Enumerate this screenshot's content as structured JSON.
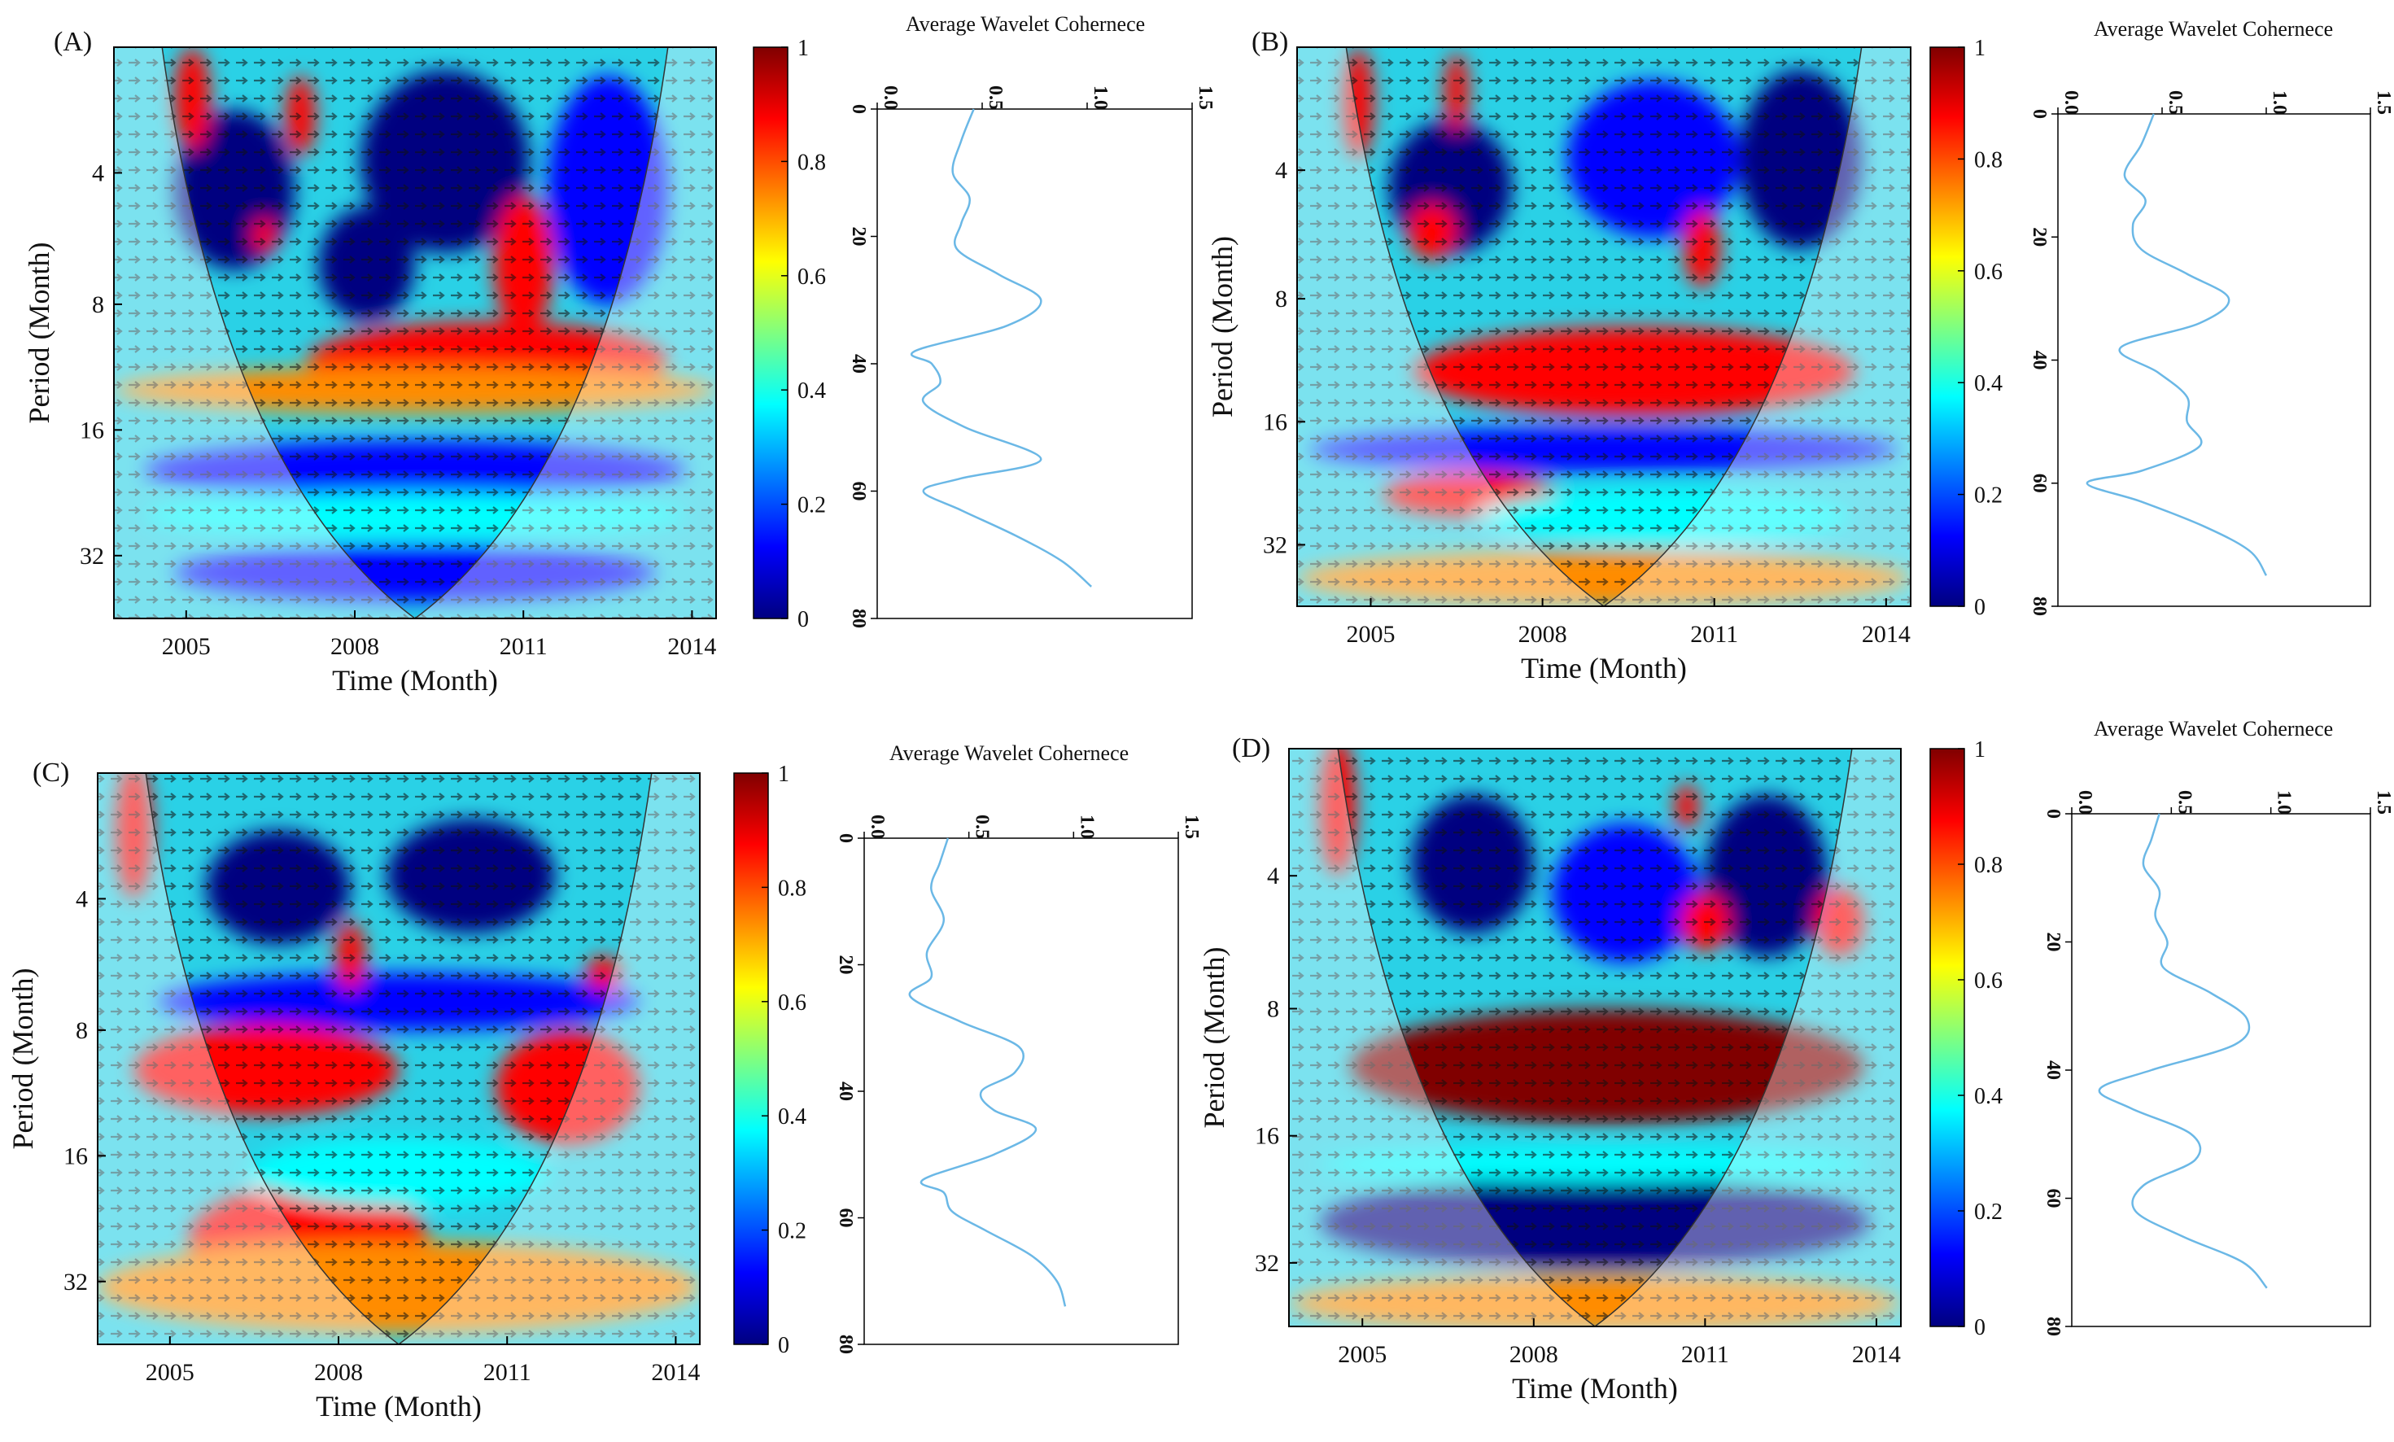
{
  "colors": {
    "dark_red": "#800000",
    "red": "#ff0000",
    "orange": "#ff8c00",
    "yellow": "#ffff00",
    "cyan": "#00ffff",
    "blue": "#0000ff",
    "dark_blue": "#000080",
    "coherence_line": "#6bb8e6"
  },
  "chart_data": [
    {
      "panel_label": "(A)",
      "type": "heatmap",
      "xlabel": "Time (Month)",
      "ylabel": "Period (Month)",
      "x_ticks": [
        "2005",
        "2008",
        "2011",
        "2014"
      ],
      "y_ticks": [
        "4",
        "8",
        "16",
        "32"
      ],
      "colorbar": {
        "ticks": [
          "0",
          "0.2",
          "0.4",
          "0.6",
          "0.8",
          "1"
        ],
        "range": [
          0,
          1
        ]
      },
      "profile": {
        "title": "Average Wavelet Cohernece",
        "x_ticks": [
          "0.0",
          "0.5",
          "1.0",
          "1.5"
        ],
        "y_ticks": [
          "0",
          "20",
          "40",
          "60",
          "80"
        ],
        "xlim": [
          0,
          1.5
        ],
        "ylim": [
          0,
          80
        ],
        "period": [
          0,
          5,
          10,
          14,
          18,
          22,
          26,
          30,
          34,
          38,
          40,
          43,
          46,
          50,
          55,
          58,
          60,
          63,
          67,
          71,
          75
        ],
        "value": [
          0.46,
          0.4,
          0.36,
          0.44,
          0.4,
          0.38,
          0.58,
          0.78,
          0.62,
          0.18,
          0.26,
          0.3,
          0.22,
          0.42,
          0.78,
          0.4,
          0.22,
          0.4,
          0.66,
          0.88,
          1.02
        ]
      }
    },
    {
      "panel_label": "(B)",
      "type": "heatmap",
      "xlabel": "Time (Month)",
      "ylabel": "Period (Month)",
      "x_ticks": [
        "2005",
        "2008",
        "2011",
        "2014"
      ],
      "y_ticks": [
        "4",
        "8",
        "16",
        "32"
      ],
      "colorbar": {
        "ticks": [
          "0",
          "0.2",
          "0.4",
          "0.6",
          "0.8",
          "1"
        ],
        "range": [
          0,
          1
        ]
      },
      "profile": {
        "title": "Average Wavelet Cohernece",
        "x_ticks": [
          "0.0",
          "0.5",
          "1.0",
          "1.5"
        ],
        "y_ticks": [
          "0",
          "20",
          "40",
          "60",
          "80"
        ],
        "xlim": [
          0,
          1.5
        ],
        "ylim": [
          0,
          80
        ],
        "period": [
          0,
          5,
          10,
          14,
          18,
          22,
          26,
          30,
          34,
          38,
          42,
          46,
          50,
          54,
          58,
          60,
          63,
          67,
          71,
          75
        ],
        "value": [
          0.46,
          0.4,
          0.32,
          0.42,
          0.36,
          0.4,
          0.62,
          0.82,
          0.68,
          0.3,
          0.48,
          0.62,
          0.62,
          0.68,
          0.4,
          0.14,
          0.4,
          0.7,
          0.92,
          1.0
        ]
      }
    },
    {
      "panel_label": "(C)",
      "type": "heatmap",
      "xlabel": "Time (Month)",
      "ylabel": "Period (Month)",
      "x_ticks": [
        "2005",
        "2008",
        "2011",
        "2014"
      ],
      "y_ticks": [
        "4",
        "8",
        "16",
        "32"
      ],
      "colorbar": {
        "ticks": [
          "0",
          "0.2",
          "0.4",
          "0.6",
          "0.8",
          "1"
        ],
        "range": [
          0,
          1
        ]
      },
      "profile": {
        "title": "Average Wavelet Cohernece",
        "x_ticks": [
          "0.0",
          "0.5",
          "1.0",
          "1.5"
        ],
        "y_ticks": [
          "0",
          "20",
          "40",
          "60",
          "80"
        ],
        "xlim": [
          0,
          1.5
        ],
        "ylim": [
          0,
          80
        ],
        "period": [
          0,
          4,
          8,
          13,
          18,
          22,
          25,
          29,
          33,
          37,
          40,
          43,
          46,
          50,
          54,
          56,
          59,
          62,
          66,
          70,
          74
        ],
        "value": [
          0.4,
          0.36,
          0.32,
          0.38,
          0.3,
          0.32,
          0.22,
          0.46,
          0.74,
          0.72,
          0.56,
          0.62,
          0.82,
          0.62,
          0.28,
          0.38,
          0.42,
          0.58,
          0.8,
          0.92,
          0.96
        ]
      }
    },
    {
      "panel_label": "(D)",
      "type": "heatmap",
      "xlabel": "Time (Month)",
      "ylabel": "Period (Month)",
      "x_ticks": [
        "2005",
        "2008",
        "2011",
        "2014"
      ],
      "y_ticks": [
        "4",
        "8",
        "16",
        "32"
      ],
      "colorbar": {
        "ticks": [
          "0",
          "0.2",
          "0.4",
          "0.6",
          "0.8",
          "1"
        ],
        "range": [
          0,
          1
        ]
      },
      "profile": {
        "title": "Average Wavelet Cohernece",
        "x_ticks": [
          "0.0",
          "0.5",
          "1.0",
          "1.5"
        ],
        "y_ticks": [
          "0",
          "20",
          "40",
          "60",
          "80"
        ],
        "xlim": [
          0,
          1.5
        ],
        "ylim": [
          0,
          80
        ],
        "period": [
          0,
          4,
          8,
          12,
          16,
          20,
          24,
          28,
          32,
          36,
          40,
          43,
          46,
          50,
          54,
          58,
          62,
          66,
          70,
          74
        ],
        "value": [
          0.44,
          0.4,
          0.36,
          0.44,
          0.42,
          0.48,
          0.46,
          0.7,
          0.88,
          0.82,
          0.4,
          0.14,
          0.3,
          0.6,
          0.62,
          0.36,
          0.32,
          0.56,
          0.86,
          0.98
        ]
      }
    }
  ]
}
